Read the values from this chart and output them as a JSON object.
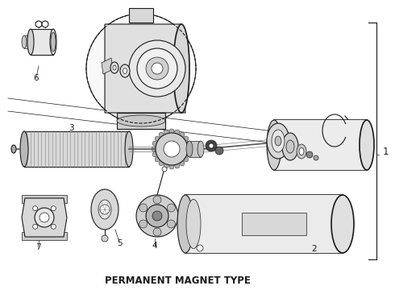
{
  "title": "PERMANENT MAGNET TYPE",
  "bg_color": "#ffffff",
  "lc": "#1a1a1a",
  "title_fontsize": 8.5,
  "label_fontsize": 7.5,
  "fig_width": 4.9,
  "fig_height": 3.6,
  "dpi": 100
}
